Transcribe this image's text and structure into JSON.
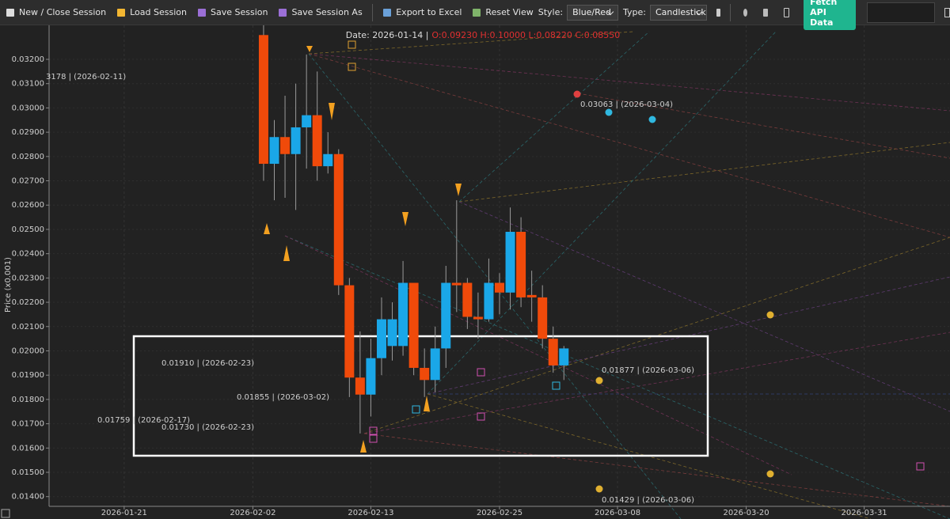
{
  "toolbar": {
    "buttons": [
      "New / Close Session",
      "Load Session",
      "Save Session",
      "Save Session As",
      "Export to Excel",
      "Reset View"
    ],
    "style_label": "Style:",
    "style_value": "Blue/Red",
    "type_label": "Type:",
    "type_value": "Candlestick",
    "fetch": "Fetch API Data"
  },
  "chart_data": {
    "type": "candlestick",
    "header_date": "Date: 2026-01-14 |",
    "header_ohlc": "O:0.09230 H:0.10000 L:0.08220 C:0.08550",
    "ylabel": "Price (x0.001)",
    "up_color": "#1aa7e8",
    "down_color": "#f04a0a",
    "x": [
      "2026-02-03",
      "2026-02-04",
      "2026-02-05",
      "2026-02-06",
      "2026-02-07",
      "2026-02-08",
      "2026-02-09",
      "2026-02-10",
      "2026-02-11",
      "2026-02-12",
      "2026-02-13",
      "2026-02-14",
      "2026-02-15",
      "2026-02-16",
      "2026-02-17",
      "2026-02-18",
      "2026-02-19",
      "2026-02-20",
      "2026-02-21",
      "2026-02-22",
      "2026-02-23",
      "2026-02-24",
      "2026-02-25",
      "2026-02-26",
      "2026-02-27",
      "2026-02-28",
      "2026-03-01",
      "2026-03-02",
      "2026-03-03"
    ],
    "open": [
      0.033,
      0.0277,
      0.0288,
      0.0281,
      0.0292,
      0.0297,
      0.0276,
      0.0281,
      0.0227,
      0.0189,
      0.0182,
      0.0197,
      0.0202,
      0.0202,
      0.0228,
      0.0193,
      0.0188,
      0.0201,
      0.0228,
      0.0228,
      0.0214,
      0.0213,
      0.0228,
      0.0224,
      0.0249,
      0.0223,
      0.0222,
      0.0205,
      0.0194
    ],
    "high": [
      0.0335,
      0.0295,
      0.0305,
      0.031,
      0.0322,
      0.0315,
      0.029,
      0.0283,
      0.023,
      0.0208,
      0.0205,
      0.0222,
      0.022,
      0.0237,
      0.0228,
      0.0201,
      0.021,
      0.0235,
      0.0262,
      0.023,
      0.0224,
      0.0238,
      0.0232,
      0.0259,
      0.0255,
      0.0233,
      0.0227,
      0.021,
      0.0202
    ],
    "low": [
      0.027,
      0.0262,
      0.0263,
      0.0258,
      0.0275,
      0.027,
      0.0273,
      0.0223,
      0.0181,
      0.0166,
      0.0173,
      0.019,
      0.0196,
      0.0198,
      0.019,
      0.0181,
      0.0183,
      0.0193,
      0.0216,
      0.0209,
      0.0205,
      0.0212,
      0.0215,
      0.0217,
      0.0218,
      0.0212,
      0.0201,
      0.0191,
      0.0188
    ],
    "close": [
      0.0277,
      0.0288,
      0.0281,
      0.0292,
      0.0297,
      0.0276,
      0.0281,
      0.0227,
      0.0189,
      0.0182,
      0.0197,
      0.0213,
      0.0213,
      0.0228,
      0.0193,
      0.0188,
      0.0201,
      0.0228,
      0.0227,
      0.0214,
      0.0213,
      0.0228,
      0.0224,
      0.0249,
      0.0222,
      0.0222,
      0.0205,
      0.0194,
      0.0201
    ],
    "xlim": [
      "2026-01-14",
      "2026-04-08"
    ],
    "xticks": [
      "2026-01-21",
      "2026-02-02",
      "2026-02-13",
      "2026-02-25",
      "2026-03-08",
      "2026-03-20",
      "2026-03-31"
    ],
    "ylim": [
      0.0136,
      0.0334
    ],
    "yticks": [
      {
        "value": 0.014,
        "label": "0.01400"
      },
      {
        "value": 0.015,
        "label": "0.01500"
      },
      {
        "value": 0.016,
        "label": "0.01600"
      },
      {
        "value": 0.017,
        "label": "0.01700"
      },
      {
        "value": 0.018,
        "label": "0.01800"
      },
      {
        "value": 0.019,
        "label": "0.01900"
      },
      {
        "value": 0.02,
        "label": "0.02000"
      },
      {
        "value": 0.021,
        "label": "0.02100"
      },
      {
        "value": 0.022,
        "label": "0.02200"
      },
      {
        "value": 0.023,
        "label": "0.02300"
      },
      {
        "value": 0.024,
        "label": "0.02400"
      },
      {
        "value": 0.025,
        "label": "0.02500"
      },
      {
        "value": 0.026,
        "label": "0.02600"
      },
      {
        "value": 0.027,
        "label": "0.02700"
      },
      {
        "value": 0.028,
        "label": "0.02800"
      },
      {
        "value": 0.029,
        "label": "0.02900"
      },
      {
        "value": 0.03,
        "label": "0.03000"
      },
      {
        "value": 0.031,
        "label": "0.03100"
      },
      {
        "value": 0.032,
        "label": "0.03200"
      }
    ],
    "grid": true,
    "annotations": [
      "3178 | (2026-02-11)",
      "0.03063 | (2026-03-04)",
      "0.01910 | (2026-02-23)",
      "0.01877 | (2026-03-06)",
      "0.01855 | (2026-03-02)",
      "0.01759 | (2026-02-17)",
      "0.01730 | (2026-02-23)",
      "0.01429 | (2026-03-06)"
    ]
  }
}
